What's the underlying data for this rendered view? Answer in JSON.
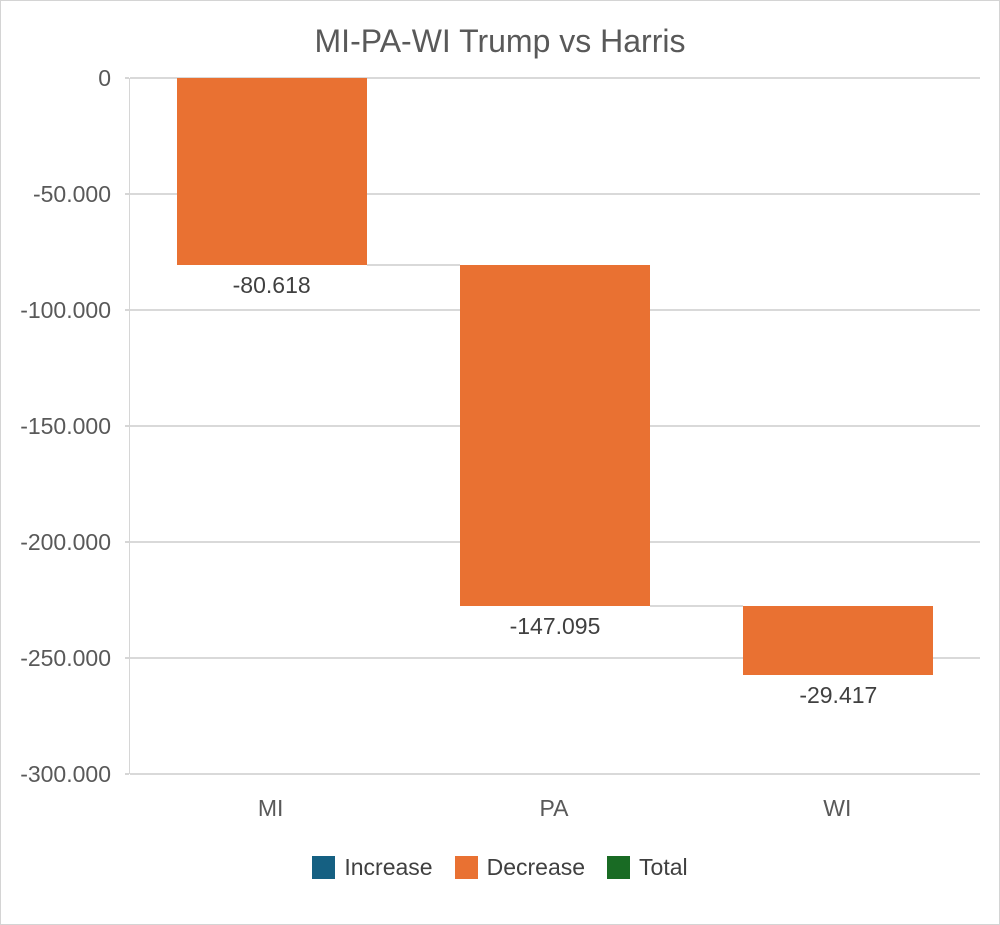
{
  "chart_data": {
    "type": "waterfall",
    "title": "MI-PA-WI Trump vs Harris",
    "categories": [
      "MI",
      "PA",
      "WI"
    ],
    "series": [
      {
        "name": "Decrease",
        "values": [
          -80618,
          -147095,
          -29417
        ]
      }
    ],
    "values": [
      -80618,
      -147095,
      -29417
    ],
    "data_labels": [
      "-80.618",
      "-147.095",
      "-29.417"
    ],
    "cumulative": [
      -80618,
      -227713,
      -257130
    ],
    "ylim": [
      -300000,
      0
    ],
    "ytick_interval": 50000,
    "yticks": [
      {
        "label": "0",
        "value": 0
      },
      {
        "label": "-50.000",
        "value": -50000
      },
      {
        "label": "-100.000",
        "value": -100000
      },
      {
        "label": "-150.000",
        "value": -150000
      },
      {
        "label": "-200.000",
        "value": -200000
      },
      {
        "label": "-250.000",
        "value": -250000
      },
      {
        "label": "-300.000",
        "value": -300000
      }
    ],
    "grid": true,
    "legend_position": "bottom",
    "legend": [
      {
        "label": "Increase",
        "color": "#156082"
      },
      {
        "label": "Decrease",
        "color": "#E97132"
      },
      {
        "label": "Total",
        "color": "#196B24"
      }
    ],
    "colors": {
      "increase": "#156082",
      "decrease": "#E97132",
      "total": "#196B24",
      "gridline": "#D9D9D9",
      "connector": "#D9D9D9",
      "title_text": "#595959",
      "tick_text": "#595959",
      "label_text": "#404040"
    }
  }
}
